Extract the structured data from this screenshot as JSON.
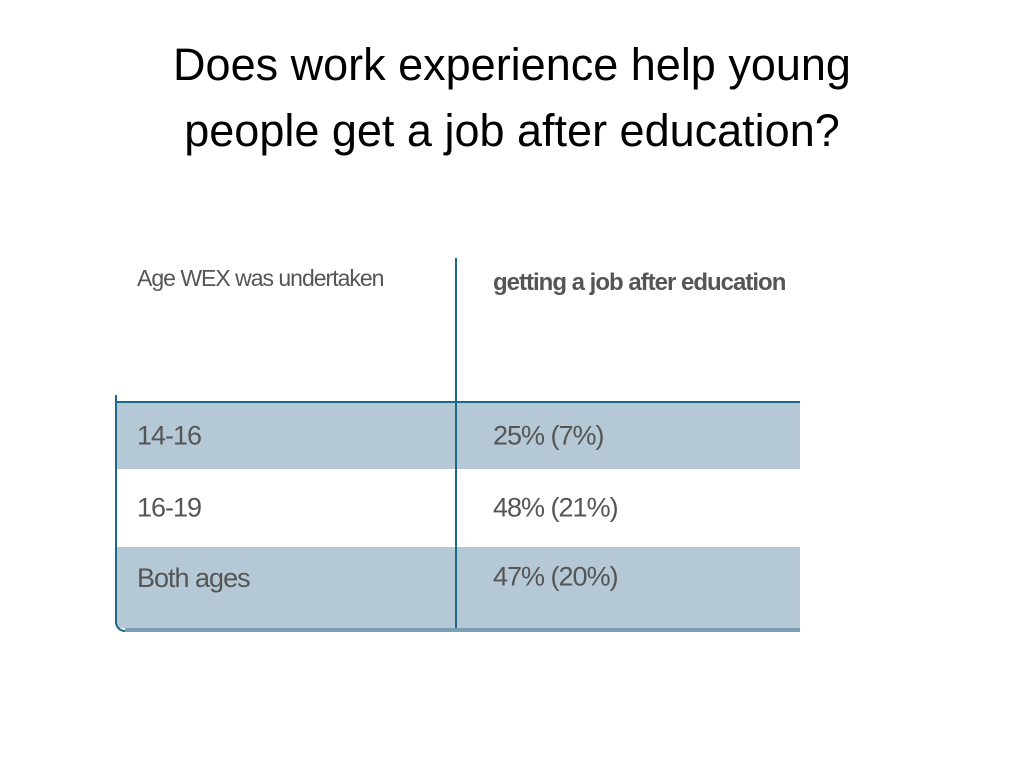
{
  "title": "Does work experience help young people get a job after education?",
  "table": {
    "headers": [
      "Age WEX was undertaken",
      "getting a job after education"
    ],
    "rows": [
      [
        "14-16",
        "25% (7%)"
      ],
      [
        "16-19",
        "48% (21%)"
      ],
      [
        "Both ages",
        "47% (20%)"
      ]
    ]
  }
}
